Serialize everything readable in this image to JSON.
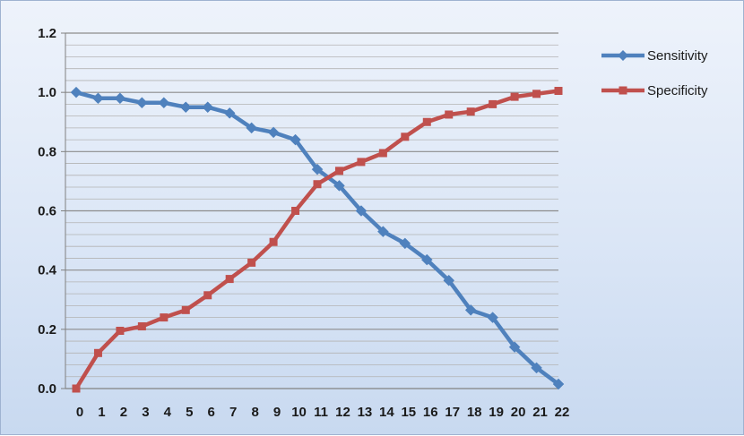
{
  "chart_data": {
    "type": "line",
    "x": [
      0,
      1,
      2,
      3,
      4,
      5,
      6,
      7,
      8,
      9,
      10,
      11,
      12,
      13,
      14,
      15,
      16,
      17,
      18,
      19,
      20,
      21,
      22
    ],
    "series": [
      {
        "name": "Sensitivity",
        "color": "#4f81bd",
        "marker": "diamond",
        "values": [
          1.0,
          0.98,
          0.98,
          0.965,
          0.965,
          0.95,
          0.95,
          0.93,
          0.88,
          0.865,
          0.84,
          0.74,
          0.685,
          0.6,
          0.53,
          0.49,
          0.435,
          0.365,
          0.265,
          0.24,
          0.14,
          0.07,
          0.015
        ]
      },
      {
        "name": "Specificity",
        "color": "#c0504d",
        "marker": "square",
        "values": [
          0.0,
          0.12,
          0.195,
          0.21,
          0.24,
          0.265,
          0.315,
          0.37,
          0.425,
          0.495,
          0.6,
          0.69,
          0.735,
          0.765,
          0.795,
          0.85,
          0.9,
          0.925,
          0.935,
          0.96,
          0.985,
          0.995,
          1.005
        ]
      }
    ],
    "y_ticks": [
      "0.0",
      "0.2",
      "0.4",
      "0.6",
      "0.8",
      "1.0",
      "1.2"
    ],
    "x_ticks": [
      "0",
      "1",
      "2",
      "3",
      "4",
      "5",
      "6",
      "7",
      "8",
      "9",
      "10",
      "11",
      "12",
      "13",
      "14",
      "15",
      "16",
      "17",
      "18",
      "19",
      "20",
      "21",
      "22"
    ],
    "ylim": [
      0,
      1.2
    ],
    "xlim": [
      0,
      22
    ],
    "grid": true,
    "legend_position": "right",
    "title": "",
    "xlabel": "",
    "ylabel": ""
  }
}
